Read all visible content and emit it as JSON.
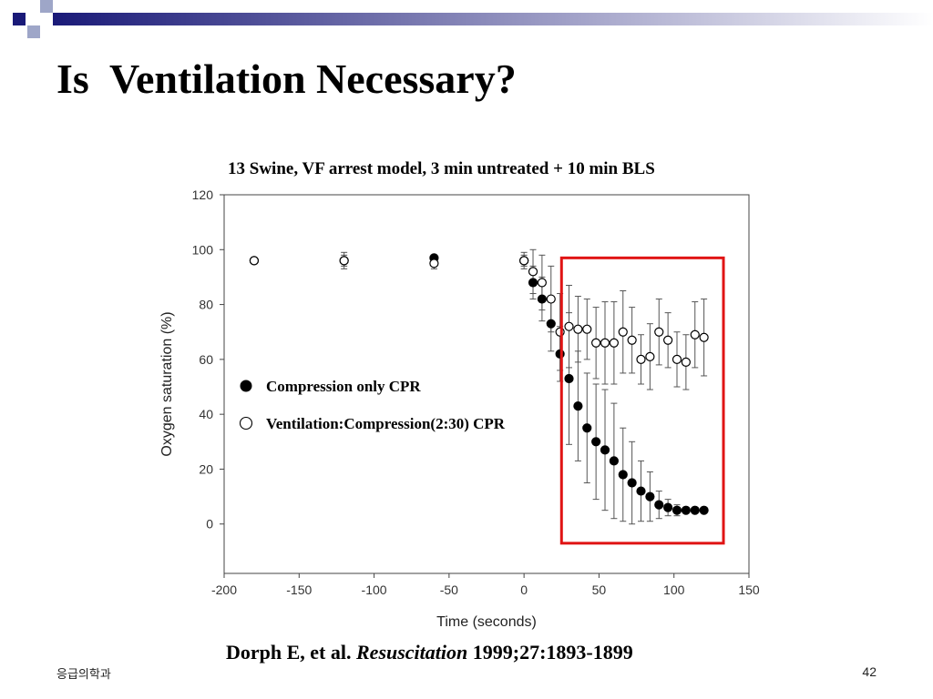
{
  "slide": {
    "title": "Is  Ventilation Necessary?",
    "footer_left": "응급의학과",
    "page_number": "42"
  },
  "citation": {
    "authors": "Dorph E, et al. ",
    "journal": "Resuscitation",
    "details": " 1999;27:1893-1899"
  },
  "colors": {
    "deco_navy": "#1a1a78",
    "deco_light": "#9ea6c8",
    "highlight_box": "#e01414"
  },
  "chart_data": {
    "type": "scatter",
    "title": "13 Swine, VF arrest model, 3 min untreated + 10 min BLS",
    "xlabel": "Time (seconds)",
    "ylabel": "Oxygen saturation (%)",
    "xlim": [
      -200,
      150
    ],
    "ylim": [
      -18,
      120
    ],
    "x_ticks": [
      -200,
      -150,
      -100,
      -50,
      0,
      50,
      100,
      150
    ],
    "y_ticks": [
      0,
      20,
      40,
      60,
      80,
      100,
      120
    ],
    "grid": false,
    "legend_position": "center-left",
    "highlight_region": {
      "x": [
        25,
        133
      ],
      "y": [
        -7,
        97
      ]
    },
    "series": [
      {
        "name": "Compression only CPR",
        "marker": "filled-circle",
        "points": [
          {
            "x": -180,
            "y": 96,
            "err": 1
          },
          {
            "x": -120,
            "y": 96,
            "err": 2
          },
          {
            "x": -60,
            "y": 97,
            "err": 1
          },
          {
            "x": 0,
            "y": 96,
            "err": 2
          },
          {
            "x": 6,
            "y": 88,
            "err": 6
          },
          {
            "x": 12,
            "y": 82,
            "err": 8
          },
          {
            "x": 18,
            "y": 73,
            "err": 10
          },
          {
            "x": 24,
            "y": 62,
            "err": 10
          },
          {
            "x": 30,
            "y": 53,
            "err": 24
          },
          {
            "x": 36,
            "y": 43,
            "err": 20
          },
          {
            "x": 42,
            "y": 35,
            "err": 20
          },
          {
            "x": 48,
            "y": 30,
            "err": 21
          },
          {
            "x": 54,
            "y": 27,
            "err": 22
          },
          {
            "x": 60,
            "y": 23,
            "err": 21
          },
          {
            "x": 66,
            "y": 18,
            "err": 17
          },
          {
            "x": 72,
            "y": 15,
            "err": 15
          },
          {
            "x": 78,
            "y": 12,
            "err": 11
          },
          {
            "x": 84,
            "y": 10,
            "err": 9
          },
          {
            "x": 90,
            "y": 7,
            "err": 5
          },
          {
            "x": 96,
            "y": 6,
            "err": 3
          },
          {
            "x": 102,
            "y": 5,
            "err": 2
          },
          {
            "x": 108,
            "y": 5,
            "err": 1
          },
          {
            "x": 114,
            "y": 5,
            "err": 1
          },
          {
            "x": 120,
            "y": 5,
            "err": 1
          }
        ]
      },
      {
        "name": "Ventilation:Compression(2:30) CPR",
        "marker": "open-circle",
        "points": [
          {
            "x": -180,
            "y": 96,
            "err": 1
          },
          {
            "x": -120,
            "y": 96,
            "err": 3
          },
          {
            "x": -60,
            "y": 95,
            "err": 2
          },
          {
            "x": 0,
            "y": 96,
            "err": 3
          },
          {
            "x": 6,
            "y": 92,
            "err": 8
          },
          {
            "x": 12,
            "y": 88,
            "err": 10
          },
          {
            "x": 18,
            "y": 82,
            "err": 12
          },
          {
            "x": 24,
            "y": 70,
            "err": 14
          },
          {
            "x": 30,
            "y": 72,
            "err": 15
          },
          {
            "x": 36,
            "y": 71,
            "err": 12
          },
          {
            "x": 42,
            "y": 71,
            "err": 11
          },
          {
            "x": 48,
            "y": 66,
            "err": 13
          },
          {
            "x": 54,
            "y": 66,
            "err": 15
          },
          {
            "x": 60,
            "y": 66,
            "err": 15
          },
          {
            "x": 66,
            "y": 70,
            "err": 15
          },
          {
            "x": 72,
            "y": 67,
            "err": 12
          },
          {
            "x": 78,
            "y": 60,
            "err": 9
          },
          {
            "x": 84,
            "y": 61,
            "err": 12
          },
          {
            "x": 90,
            "y": 70,
            "err": 12
          },
          {
            "x": 96,
            "y": 67,
            "err": 10
          },
          {
            "x": 102,
            "y": 60,
            "err": 10
          },
          {
            "x": 108,
            "y": 59,
            "err": 10
          },
          {
            "x": 114,
            "y": 69,
            "err": 12
          },
          {
            "x": 120,
            "y": 68,
            "err": 14
          }
        ]
      }
    ]
  }
}
